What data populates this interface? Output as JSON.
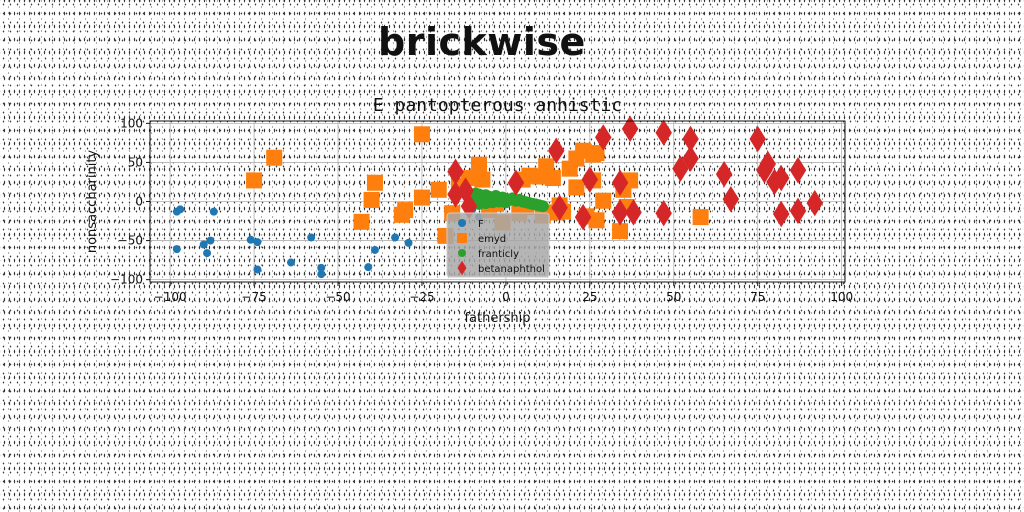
{
  "page": {
    "title": "brickwise"
  },
  "chart_data": {
    "type": "scatter",
    "title": "E pantopterous anhistic",
    "xlabel": "fathership",
    "ylabel": "nonsaccharinity",
    "xlim": [
      -106,
      101
    ],
    "ylim": [
      -103,
      103
    ],
    "xticks": [
      -100,
      -75,
      -50,
      -25,
      0,
      25,
      50,
      75,
      100
    ],
    "yticks": [
      -100,
      -50,
      0,
      50,
      100
    ],
    "grid": true,
    "legend_position": "lower-center",
    "series": [
      {
        "name": "F",
        "marker": "circle",
        "color": "#1f77b4",
        "points": [
          [
            -98,
            -13
          ],
          [
            -97,
            -10
          ],
          [
            -98,
            -61
          ],
          [
            -87,
            -13
          ],
          [
            -90,
            -55
          ],
          [
            -88,
            -50
          ],
          [
            -89,
            -66
          ],
          [
            -76,
            -49
          ],
          [
            -74,
            -52
          ],
          [
            -74,
            -87
          ],
          [
            -64,
            -78
          ],
          [
            -58,
            -46
          ],
          [
            -55,
            -85
          ],
          [
            -55,
            -93
          ],
          [
            -41,
            -84
          ],
          [
            -39,
            -62
          ],
          [
            -33,
            -46
          ],
          [
            -29,
            -53
          ],
          [
            -10,
            -10
          ],
          [
            -8,
            -20
          ]
        ]
      },
      {
        "name": "emyd",
        "marker": "square",
        "color": "#ff7f0e",
        "points": [
          [
            -75,
            27
          ],
          [
            -69,
            56
          ],
          [
            -39,
            24
          ],
          [
            -40,
            2
          ],
          [
            -43,
            -26
          ],
          [
            -31,
            -17
          ],
          [
            -30,
            -11
          ],
          [
            -25,
            86
          ],
          [
            -25,
            5
          ],
          [
            -20,
            15
          ],
          [
            -16,
            -15
          ],
          [
            -18,
            -44
          ],
          [
            -14,
            20
          ],
          [
            -11,
            30
          ],
          [
            -8,
            47
          ],
          [
            -7,
            28
          ],
          [
            -5,
            -11
          ],
          [
            -3,
            -3
          ],
          [
            -1,
            -27
          ],
          [
            4,
            -15
          ],
          [
            5,
            28
          ],
          [
            6,
            -7
          ],
          [
            7,
            33
          ],
          [
            10,
            32
          ],
          [
            11,
            -18
          ],
          [
            12,
            45
          ],
          [
            14,
            30
          ],
          [
            15,
            -14
          ],
          [
            16,
            -5
          ],
          [
            17,
            -13
          ],
          [
            19,
            42
          ],
          [
            21,
            55
          ],
          [
            21,
            18
          ],
          [
            23,
            65
          ],
          [
            24,
            -19
          ],
          [
            26,
            60
          ],
          [
            26,
            27
          ],
          [
            27,
            62
          ],
          [
            27,
            -24
          ],
          [
            29,
            1
          ],
          [
            34,
            -38
          ],
          [
            35,
            15
          ],
          [
            36,
            -7
          ],
          [
            37,
            27
          ],
          [
            58,
            -20
          ]
        ]
      },
      {
        "name": "franticly",
        "marker": "circle",
        "color": "#2ca02c",
        "points": [
          [
            -10,
            8
          ],
          [
            -9,
            10
          ],
          [
            -8,
            9
          ],
          [
            -7,
            7
          ],
          [
            -6,
            8
          ],
          [
            -5,
            6
          ],
          [
            -4,
            5
          ],
          [
            -3,
            7
          ],
          [
            -2,
            4
          ],
          [
            -1,
            5
          ],
          [
            0,
            3
          ],
          [
            1,
            2
          ],
          [
            2,
            4
          ],
          [
            3,
            1
          ],
          [
            4,
            2
          ],
          [
            5,
            0
          ],
          [
            6,
            -1
          ],
          [
            7,
            -2
          ],
          [
            8,
            -3
          ],
          [
            9,
            -4
          ],
          [
            10,
            -5
          ],
          [
            11,
            -6
          ],
          [
            -10,
            -1
          ],
          [
            -8,
            -3
          ],
          [
            -6,
            -2
          ],
          [
            -4,
            -1
          ],
          [
            -2,
            0
          ],
          [
            0,
            -1
          ]
        ]
      },
      {
        "name": "betanaphthol",
        "marker": "diamond",
        "color": "#d62728",
        "points": [
          [
            -15,
            38
          ],
          [
            -15,
            9
          ],
          [
            -12,
            14
          ],
          [
            -11,
            -6
          ],
          [
            3,
            24
          ],
          [
            15,
            65
          ],
          [
            16,
            -8
          ],
          [
            23,
            -20
          ],
          [
            25,
            28
          ],
          [
            29,
            82
          ],
          [
            34,
            24
          ],
          [
            34,
            -14
          ],
          [
            37,
            93
          ],
          [
            38,
            -14
          ],
          [
            47,
            88
          ],
          [
            47,
            -15
          ],
          [
            52,
            42
          ],
          [
            55,
            80
          ],
          [
            55,
            55
          ],
          [
            65,
            35
          ],
          [
            67,
            3
          ],
          [
            75,
            80
          ],
          [
            77,
            40
          ],
          [
            78,
            48
          ],
          [
            80,
            25
          ],
          [
            82,
            30
          ],
          [
            82,
            -16
          ],
          [
            87,
            -12
          ],
          [
            87,
            40
          ],
          [
            92,
            -2
          ]
        ]
      }
    ]
  }
}
